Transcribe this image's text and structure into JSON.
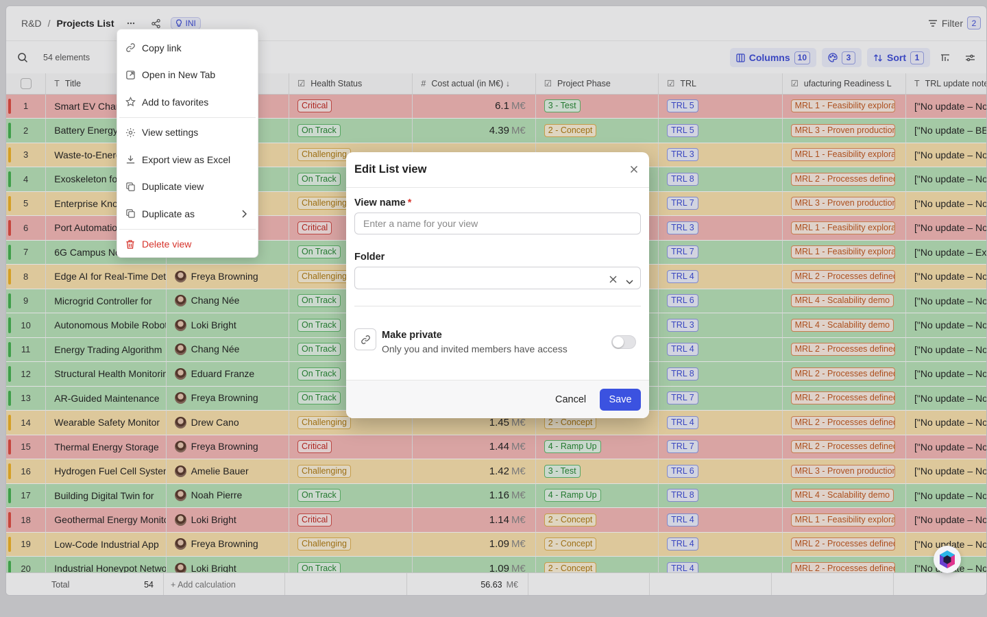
{
  "breadcrumb": {
    "parent": "R&D",
    "separator": "/",
    "current": "Projects List"
  },
  "header": {
    "tag_label": "INI",
    "filter_label": "Filter",
    "filter_count": "2"
  },
  "toolbar": {
    "element_count": "54 elements",
    "columns_label": "Columns",
    "columns_count": "10",
    "palette_count": "3",
    "sort_label": "Sort",
    "sort_count": "1"
  },
  "table": {
    "headers": {
      "title": "Title",
      "health": "Health Status",
      "cost": "Cost actual (in M€)",
      "phase": "Project Phase",
      "trl": "TRL",
      "mrl": "ufacturing Readiness L",
      "trl_note": "TRL update note"
    },
    "cost_unit": "M€",
    "rows": [
      {
        "n": "1",
        "title": "Smart EV Charging",
        "owner": "",
        "health": "Critical",
        "cost": "6.1",
        "phase": "3 - Test",
        "trl": "TRL 5",
        "mrl": "MRL 1 - Feasibility exploration",
        "note": "[\"No update – No n"
      },
      {
        "n": "2",
        "title": "Battery Energy Storage",
        "owner": "",
        "health": "On Track",
        "cost": "4.39",
        "phase": "2 - Concept",
        "trl": "TRL 5",
        "mrl": "MRL 3 - Proven production",
        "note": "[\"No update – BESS"
      },
      {
        "n": "3",
        "title": "Waste-to-Energy",
        "owner": "",
        "health": "Challenging",
        "cost": "",
        "phase": "",
        "trl": "TRL 3",
        "mrl": "MRL 1 - Feasibility exploration",
        "note": "[\"No update – No n"
      },
      {
        "n": "4",
        "title": "Exoskeleton for Workers",
        "owner": "",
        "health": "On Track",
        "cost": "",
        "phase": "",
        "trl": "TRL 8",
        "mrl": "MRL 2 - Processes defined",
        "note": "[\"No update – No n"
      },
      {
        "n": "5",
        "title": "Enterprise Knowledge",
        "owner": "",
        "health": "Challenging",
        "cost": "",
        "phase": "",
        "trl": "TRL 7",
        "mrl": "MRL 3 - Proven production",
        "note": "[\"No update – No n"
      },
      {
        "n": "6",
        "title": "Port Automation",
        "owner": "",
        "health": "Critical",
        "cost": "",
        "phase": "",
        "trl": "TRL 3",
        "mrl": "MRL 1 - Feasibility exploration",
        "note": "[\"No update – No n"
      },
      {
        "n": "7",
        "title": "6G Campus Network",
        "owner": "",
        "health": "On Track",
        "cost": "",
        "phase": "",
        "trl": "TRL 7",
        "mrl": "MRL 1 - Feasibility exploration",
        "note": "[\"No update – Exte"
      },
      {
        "n": "8",
        "title": "Edge AI for Real-Time Detection",
        "owner": "Freya Browning",
        "health": "Challenging",
        "cost": "",
        "phase": "",
        "trl": "TRL 4",
        "mrl": "MRL 2 - Processes defined",
        "note": "[\"No update – No n"
      },
      {
        "n": "9",
        "title": "Microgrid Controller for",
        "owner": "Chang Née",
        "health": "On Track",
        "cost": "",
        "phase": "",
        "trl": "TRL 6",
        "mrl": "MRL 4 - Scalability demo",
        "note": "[\"No update – No n"
      },
      {
        "n": "10",
        "title": "Autonomous Mobile Robots",
        "owner": "Loki Bright",
        "health": "On Track",
        "cost": "",
        "phase": "",
        "trl": "TRL 3",
        "mrl": "MRL 4 - Scalability demo",
        "note": "[\"No update – No n"
      },
      {
        "n": "11",
        "title": "Energy Trading Algorithm",
        "owner": "Chang Née",
        "health": "On Track",
        "cost": "",
        "phase": "",
        "trl": "TRL 4",
        "mrl": "MRL 2 - Processes defined",
        "note": "[\"No update – No n"
      },
      {
        "n": "12",
        "title": "Structural Health Monitoring",
        "owner": "Eduard Franze",
        "health": "On Track",
        "cost": "",
        "phase": "",
        "trl": "TRL 8",
        "mrl": "MRL 2 - Processes defined",
        "note": "[\"No update – No n"
      },
      {
        "n": "13",
        "title": "AR-Guided Maintenance",
        "owner": "Freya Browning",
        "health": "On Track",
        "cost": "",
        "phase": "",
        "trl": "TRL 7",
        "mrl": "MRL 2 - Processes defined",
        "note": "[\"No update – No n"
      },
      {
        "n": "14",
        "title": "Wearable Safety Monitor",
        "owner": "Drew Cano",
        "health": "Challenging",
        "cost": "1.45",
        "phase": "2 - Concept",
        "trl": "TRL 4",
        "mrl": "MRL 2 - Processes defined",
        "note": "[\"No update – No n"
      },
      {
        "n": "15",
        "title": "Thermal Energy Storage",
        "owner": "Freya Browning",
        "health": "Critical",
        "cost": "1.44",
        "phase": "4 - Ramp Up",
        "trl": "TRL 7",
        "mrl": "MRL 2 - Processes defined",
        "note": "[\"No update – No n"
      },
      {
        "n": "16",
        "title": "Hydrogen Fuel Cell System",
        "owner": "Amelie Bauer",
        "health": "Challenging",
        "cost": "1.42",
        "phase": "3 - Test",
        "trl": "TRL 6",
        "mrl": "MRL 3 - Proven production",
        "note": "[\"No update – No n"
      },
      {
        "n": "17",
        "title": "Building Digital Twin for",
        "owner": "Noah Pierre",
        "health": "On Track",
        "cost": "1.16",
        "phase": "4 - Ramp Up",
        "trl": "TRL 8",
        "mrl": "MRL 4 - Scalability demo",
        "note": "[\"No update – No n"
      },
      {
        "n": "18",
        "title": "Geothermal Energy Monitoring",
        "owner": "Loki Bright",
        "health": "Critical",
        "cost": "1.14",
        "phase": "2 - Concept",
        "trl": "TRL 4",
        "mrl": "MRL 1 - Feasibility exploration",
        "note": "[\"No update – No n"
      },
      {
        "n": "19",
        "title": "Low-Code Industrial App",
        "owner": "Freya Browning",
        "health": "Challenging",
        "cost": "1.09",
        "phase": "2 - Concept",
        "trl": "TRL 4",
        "mrl": "MRL 2 - Processes defined",
        "note": "[\"No update – No n"
      },
      {
        "n": "20",
        "title": "Industrial Honeypot Network",
        "owner": "Loki Bright",
        "health": "On Track",
        "cost": "1.09",
        "phase": "2 - Concept",
        "trl": "TRL 4",
        "mrl": "MRL 2 - Processes defined",
        "note": "[\"No update – No n"
      }
    ],
    "footer": {
      "total_label": "Total",
      "total_count": "54",
      "add_calc": "+ Add calculation",
      "cost_sum": "56.63",
      "cost_unit": "M€"
    }
  },
  "context_menu": {
    "items": [
      "Copy link",
      "Open in New Tab",
      "Add to favorites",
      "View settings",
      "Export view as Excel",
      "Duplicate view",
      "Duplicate as",
      "Delete view"
    ]
  },
  "modal": {
    "title": "Edit List view",
    "view_name_label": "View name",
    "required_mark": "*",
    "view_name_placeholder": "Enter a name for your view",
    "folder_label": "Folder",
    "private_title": "Make private",
    "private_sub": "Only you and invited members have access",
    "cancel_label": "Cancel",
    "save_label": "Save"
  },
  "colors": {
    "accent": "#3b52e0",
    "critical": "#f6b8b6",
    "on_track": "#b8e3b8",
    "challenging": "#fbe2ad"
  }
}
